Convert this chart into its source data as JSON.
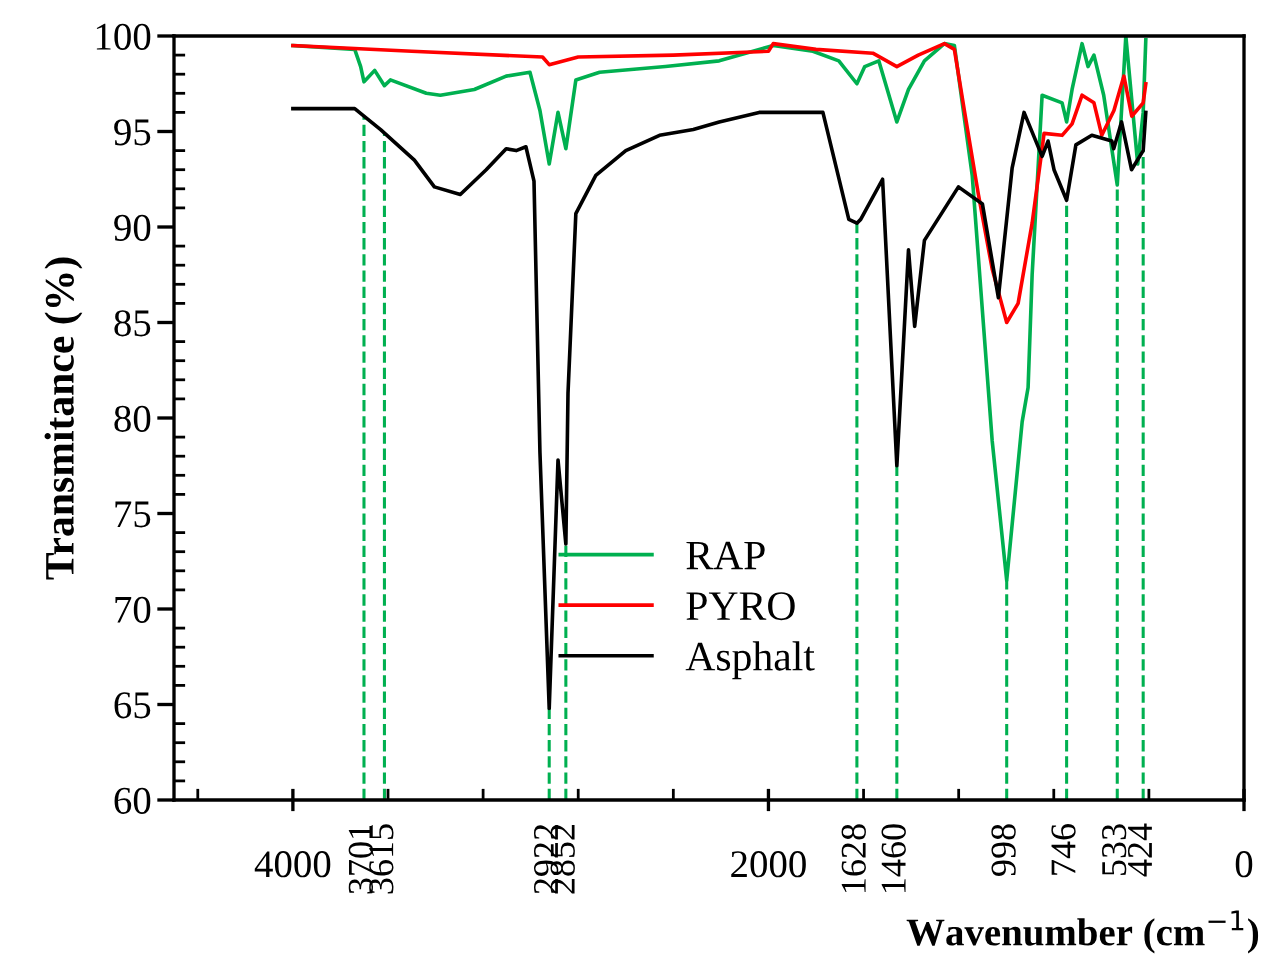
{
  "chart_data": {
    "type": "line",
    "xlabel": "Wavenumber (cm$^{−1}$)",
    "ylabel": "Transmitance (%)",
    "xlim": [
      4500,
      0
    ],
    "ylim": [
      60,
      100
    ],
    "xticks": [
      4000,
      2000,
      0,
      {
        "value": 4400,
        "label": null
      },
      {
        "value": 3600,
        "label": null
      },
      {
        "value": 3200,
        "label": null
      },
      {
        "value": 2800,
        "label": null
      },
      {
        "value": 2400,
        "label": null
      },
      {
        "value": 1600,
        "label": null
      },
      {
        "value": 1200,
        "label": null
      },
      {
        "value": 800,
        "label": null
      },
      {
        "value": 400,
        "label": null
      }
    ],
    "yticks": [
      60,
      65,
      70,
      75,
      80,
      85,
      90,
      95,
      100,
      {
        "value": 61,
        "label": null
      },
      {
        "value": 62,
        "label": null
      },
      {
        "value": 63,
        "label": null
      },
      {
        "value": 64,
        "label": null
      },
      {
        "value": 66,
        "label": null
      },
      {
        "value": 67,
        "label": null
      },
      {
        "value": 68,
        "label": null
      },
      {
        "value": 69,
        "label": null
      },
      {
        "value": 71,
        "label": null
      },
      {
        "value": 72,
        "label": null
      },
      {
        "value": 73,
        "label": null
      },
      {
        "value": 74,
        "label": null
      },
      {
        "value": 76,
        "label": null
      },
      {
        "value": 77,
        "label": null
      },
      {
        "value": 78,
        "label": null
      },
      {
        "value": 79,
        "label": null
      },
      {
        "value": 81,
        "label": null
      },
      {
        "value": 82,
        "label": null
      },
      {
        "value": 83,
        "label": null
      },
      {
        "value": 84,
        "label": null
      },
      {
        "value": 86,
        "label": null
      },
      {
        "value": 87,
        "label": null
      },
      {
        "value": 88,
        "label": null
      },
      {
        "value": 89,
        "label": null
      },
      {
        "value": 91,
        "label": null
      },
      {
        "value": 92,
        "label": null
      },
      {
        "value": 93,
        "label": null
      },
      {
        "value": 94,
        "label": null
      },
      {
        "value": 96,
        "label": null
      },
      {
        "value": 97,
        "label": null
      },
      {
        "value": 98,
        "label": null
      },
      {
        "value": 99,
        "label": null
      }
    ],
    "grid": false,
    "legend": "lower center",
    "marker": "none",
    "line_style": "solid",
    "series": [
      {
        "name": "RAP",
        "color": "#00b050",
        "x": [
          4000,
          3740,
          3715,
          3701,
          3656,
          3615,
          3590,
          3439,
          3380,
          3237,
          3103,
          3003,
          2961,
          2922,
          2885,
          2852,
          2810,
          2710,
          2433,
          2207,
          1980,
          1813,
          1704,
          1628,
          1595,
          1536,
          1460,
          1411,
          1344,
          1260,
          1218,
          1143,
          1059,
          998,
          933,
          908,
          891,
          849,
          765,
          746,
          723,
          681,
          656,
          631,
          590,
          533,
          497,
          447,
          424,
          413
        ],
        "values": [
          99.5,
          99.3,
          98.4,
          97.6,
          98.2,
          97.4,
          97.7,
          97.0,
          96.9,
          97.2,
          97.9,
          98.1,
          96.1,
          93.3,
          96.0,
          94.1,
          97.7,
          98.1,
          98.4,
          98.7,
          99.5,
          99.2,
          98.7,
          97.5,
          98.4,
          98.7,
          95.5,
          97.2,
          98.7,
          99.6,
          99.5,
          92.7,
          78.8,
          71.5,
          79.8,
          81.6,
          87.5,
          96.9,
          96.5,
          95.5,
          97.2,
          99.6,
          98.4,
          99.0,
          96.9,
          92.2,
          100.0,
          93.3,
          96.0,
          99.8
        ]
      },
      {
        "name": "PYRO",
        "color": "#ff0000",
        "x": [
          4000,
          3500,
          2950,
          2922,
          2800,
          2400,
          2000,
          1980,
          1800,
          1561,
          1460,
          1370,
          1260,
          1218,
          1176,
          1117,
          1059,
          998,
          950,
          891,
          849,
          841,
          765,
          723,
          681,
          631,
          598,
          547,
          505,
          472,
          424,
          413
        ],
        "values": [
          99.5,
          99.2,
          98.9,
          98.5,
          98.9,
          99.0,
          99.2,
          99.6,
          99.3,
          99.1,
          98.4,
          99.0,
          99.6,
          99.3,
          96.1,
          91.7,
          87.8,
          85.0,
          86.0,
          90.2,
          94.1,
          94.9,
          94.8,
          95.4,
          96.9,
          96.5,
          94.8,
          96.1,
          97.9,
          95.8,
          96.5,
          97.5
        ]
      },
      {
        "name": "Asphalt",
        "color": "#000000",
        "x": [
          4000,
          3740,
          3631,
          3489,
          3405,
          3296,
          3187,
          3103,
          3061,
          3020,
          2986,
          2961,
          2922,
          2885,
          2852,
          2843,
          2810,
          2726,
          2600,
          2458,
          2316,
          2207,
          2039,
          1813,
          1771,
          1662,
          1628,
          1612,
          1520,
          1460,
          1411,
          1385,
          1344,
          1201,
          1100,
          1033,
          975,
          925,
          849,
          824,
          799,
          746,
          707,
          640,
          556,
          548,
          515,
          473,
          424,
          413
        ],
        "values": [
          96.2,
          96.2,
          95.1,
          93.5,
          92.1,
          91.7,
          93.0,
          94.1,
          94.0,
          94.2,
          92.4,
          78.2,
          64.8,
          77.8,
          73.4,
          81.3,
          90.7,
          92.7,
          94.0,
          94.8,
          95.1,
          95.5,
          96.0,
          96.0,
          96.0,
          90.4,
          90.2,
          90.4,
          92.5,
          77.5,
          88.8,
          84.8,
          89.3,
          92.1,
          91.2,
          86.3,
          93.1,
          96.0,
          93.7,
          94.5,
          93.0,
          91.4,
          94.3,
          94.8,
          94.5,
          94.1,
          95.5,
          93.0,
          94.0,
          96.0
        ]
      }
    ],
    "ref_lines": [
      {
        "axis": "x",
        "value": 3701,
        "label": "3701",
        "color": "#00b050",
        "line_style": "dashed"
      },
      {
        "axis": "x",
        "value": 3615,
        "label": "3615",
        "color": "#00b050",
        "line_style": "dashed"
      },
      {
        "axis": "x",
        "value": 2922,
        "label": "2922",
        "color": "#00b050",
        "line_style": "dashed"
      },
      {
        "axis": "x",
        "value": 2852,
        "label": "2852",
        "color": "#00b050",
        "line_style": "dashed"
      },
      {
        "axis": "x",
        "value": 1628,
        "label": "1628",
        "color": "#00b050",
        "line_style": "dashed"
      },
      {
        "axis": "x",
        "value": 1460,
        "label": "1460",
        "color": "#00b050",
        "line_style": "dashed"
      },
      {
        "axis": "x",
        "value": 998,
        "label": "998",
        "color": "#00b050",
        "line_style": "dashed"
      },
      {
        "axis": "x",
        "value": 746,
        "label": "746",
        "color": "#00b050",
        "line_style": "dashed"
      },
      {
        "axis": "x",
        "value": 533,
        "label": "533",
        "color": "#00b050",
        "line_style": "dashed"
      },
      {
        "axis": "x",
        "value": 424,
        "label": "424",
        "color": "#00b050",
        "line_style": "dashed"
      }
    ]
  }
}
